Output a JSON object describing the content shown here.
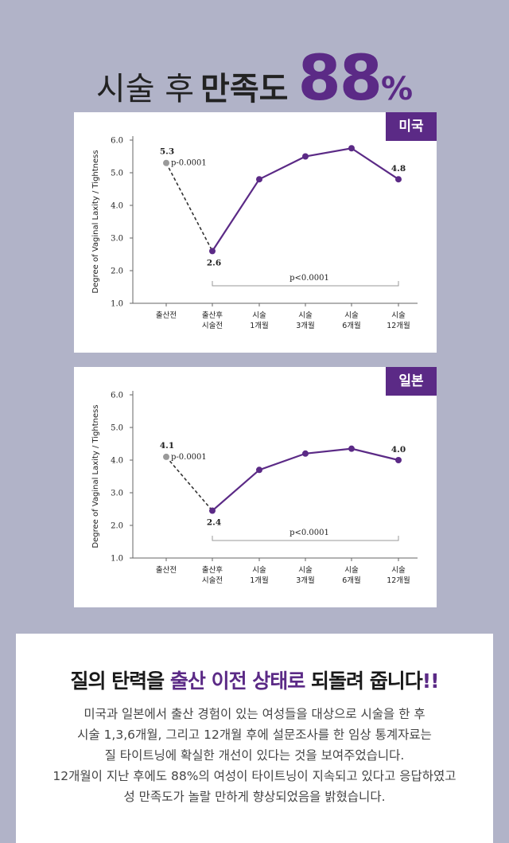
{
  "headline": {
    "part1": "시술 후",
    "part2": "만족도",
    "number": "88",
    "percent": "%"
  },
  "chart_data": [
    {
      "type": "line",
      "badge": "미국",
      "ylabel": "Degree of Vaginal Laxity / Tightness",
      "ylim": [
        1.0,
        6.0
      ],
      "yticks": [
        "1.0",
        "2.0",
        "3.0",
        "4.0",
        "5.0",
        "6.0"
      ],
      "categories": [
        [
          "출산전"
        ],
        [
          "출산후",
          "시술전"
        ],
        [
          "시술",
          "1개월"
        ],
        [
          "시술",
          "3개월"
        ],
        [
          "시술",
          "6개월"
        ],
        [
          "시술",
          "12개월"
        ]
      ],
      "values": [
        5.3,
        2.6,
        4.8,
        5.5,
        5.75,
        4.8
      ],
      "point_labels": [
        "5.3",
        "2.6",
        "",
        "",
        "",
        "4.8"
      ],
      "annotation_p1": "p-0.0001",
      "annotation_p2": "p<0.0001"
    },
    {
      "type": "line",
      "badge": "일본",
      "ylabel": "Degree of Vaginal Laxity / Tightness",
      "ylim": [
        1.0,
        6.0
      ],
      "yticks": [
        "1.0",
        "2.0",
        "3.0",
        "4.0",
        "5.0",
        "6.0"
      ],
      "categories": [
        [
          "출산전"
        ],
        [
          "출산후",
          "시술전"
        ],
        [
          "시술",
          "1개월"
        ],
        [
          "시술",
          "3개월"
        ],
        [
          "시술",
          "6개월"
        ],
        [
          "시술",
          "12개월"
        ]
      ],
      "values": [
        4.1,
        2.45,
        3.7,
        4.2,
        4.35,
        4.0
      ],
      "point_labels": [
        "4.1",
        "2.4",
        "",
        "",
        "",
        "4.0"
      ],
      "annotation_p1": "p-0.0001",
      "annotation_p2": "p<0.0001"
    }
  ],
  "bottom": {
    "title_a": "질의 탄력을",
    "title_b": "출산 이전 상태로",
    "title_c": "되돌려 줍니다",
    "title_d": "!!",
    "lines": [
      "미국과 일본에서 출산 경험이 있는 여성들을 대상으로 시술을 한 후",
      "시술 1,3,6개월, 그리고 12개월 후에 설문조사를 한 임상 통계자료는",
      "질 타이트닝에 확실한 개선이 있다는 것을 보여주었습니다.",
      "12개월이 지난 후에도 88%의 여성이 타이트닝이 지속되고 있다고 응답하였고",
      "성 만족도가 놀랄 만하게 향상되었음을 밝혔습니다."
    ]
  },
  "colors": {
    "accent": "#5b2a86",
    "background": "#b1b3c8",
    "first_point": "#9a9a9a"
  }
}
